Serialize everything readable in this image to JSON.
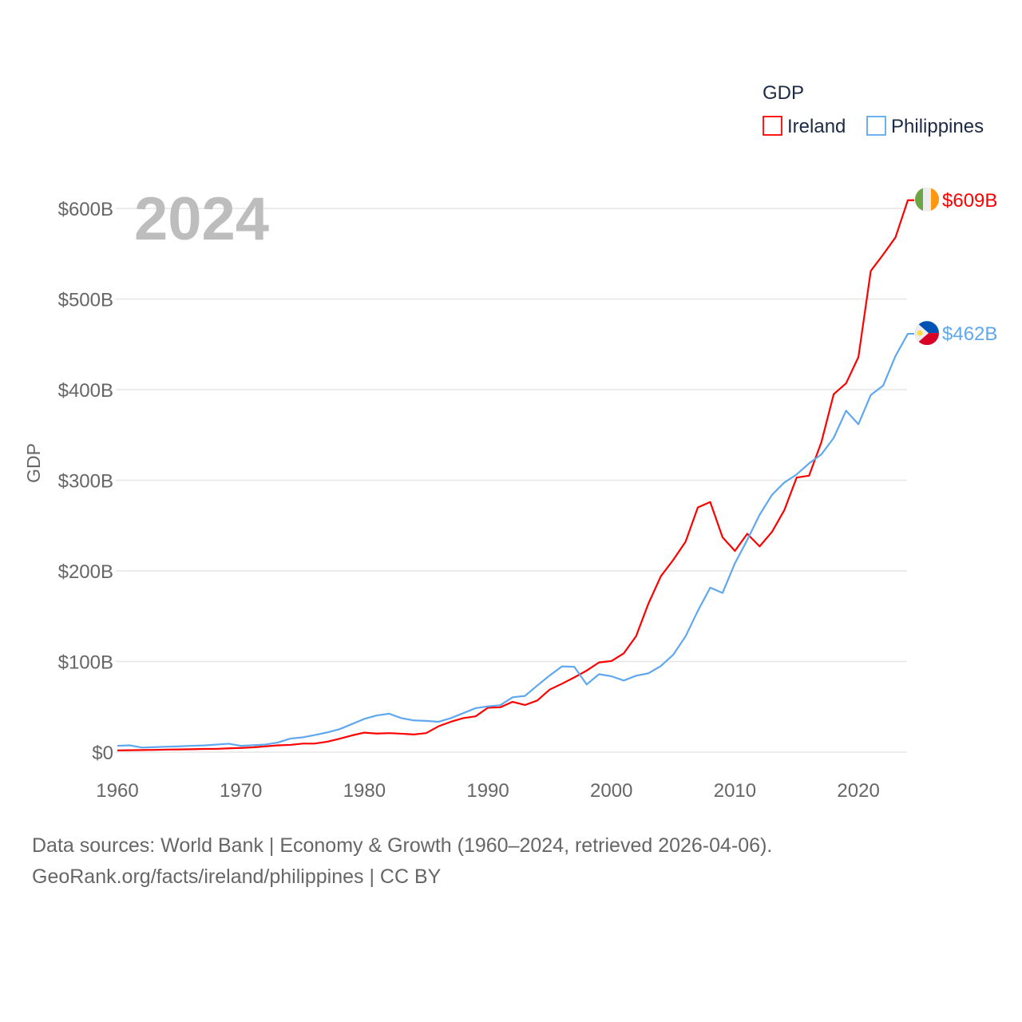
{
  "chart_data": {
    "type": "line",
    "title": "GDP",
    "year_label": "2024",
    "ylabel": "GDP",
    "xlabel": "",
    "xlim": [
      1960,
      2024
    ],
    "ylim": [
      0,
      600
    ],
    "y_unit": "billion USD",
    "xticks": [
      1960,
      1970,
      1980,
      1990,
      2000,
      2010,
      2020
    ],
    "xtick_labels": [
      "1960",
      "1970",
      "1980",
      "1990",
      "2000",
      "2010",
      "2020"
    ],
    "yticks": [
      0,
      100,
      200,
      300,
      400,
      500,
      600
    ],
    "ytick_labels": [
      "$0",
      "$100B",
      "$200B",
      "$300B",
      "$400B",
      "$500B",
      "$600B"
    ],
    "grid": true,
    "legend_title": "GDP",
    "legend_position": "top-right",
    "x": [
      1960,
      1961,
      1962,
      1963,
      1964,
      1965,
      1966,
      1967,
      1968,
      1969,
      1970,
      1971,
      1972,
      1973,
      1974,
      1975,
      1976,
      1977,
      1978,
      1979,
      1980,
      1981,
      1982,
      1983,
      1984,
      1985,
      1986,
      1987,
      1988,
      1989,
      1990,
      1991,
      1992,
      1993,
      1994,
      1995,
      1996,
      1997,
      1998,
      1999,
      2000,
      2001,
      2002,
      2003,
      2004,
      2005,
      2006,
      2007,
      2008,
      2009,
      2010,
      2011,
      2012,
      2013,
      2014,
      2015,
      2016,
      2017,
      2018,
      2019,
      2020,
      2021,
      2022,
      2023,
      2024
    ],
    "series": [
      {
        "name": "Ireland",
        "color": "#ff0000",
        "end_label": "$609B",
        "values": [
          1.9,
          2.1,
          2.3,
          2.5,
          2.8,
          3.0,
          3.2,
          3.5,
          3.6,
          4.2,
          4.6,
          5.3,
          6.4,
          7.5,
          8.0,
          9.4,
          9.5,
          11.5,
          14.8,
          18.5,
          21.5,
          20.5,
          21,
          20.3,
          19.5,
          21,
          28.5,
          33.5,
          37.5,
          39.5,
          49,
          49.5,
          55.5,
          52,
          57,
          69,
          75.5,
          82.5,
          90,
          99,
          100.5,
          109,
          128,
          164,
          194,
          212,
          232,
          270,
          276,
          237,
          222,
          241,
          227,
          243,
          267,
          303,
          305,
          342,
          395,
          407,
          436,
          531,
          549,
          568,
          609
        ]
      },
      {
        "name": "Philippines",
        "color": "#5fa8ef",
        "end_label": "$462B",
        "values": [
          7,
          7.5,
          5,
          5.5,
          6,
          6.4,
          7,
          7.4,
          8.3,
          9.3,
          7,
          7.6,
          8.4,
          10.6,
          14.9,
          16.3,
          18.9,
          21.8,
          25.4,
          31,
          36.7,
          40.5,
          42.4,
          37.5,
          35,
          34.5,
          33.5,
          37.5,
          43,
          48.5,
          50.5,
          51.8,
          60.5,
          62,
          73.5,
          84.6,
          94.6,
          94.1,
          74.7,
          86,
          83.7,
          79,
          84.3,
          87,
          95,
          107.4,
          127.7,
          155.9,
          181.5,
          175.7,
          208.4,
          234.2,
          261.9,
          283.9,
          297.5,
          306.4,
          318.6,
          328.5,
          346.8,
          376.8,
          361.8,
          394.1,
          404.4,
          437.1,
          461.6
        ]
      }
    ]
  },
  "footer": {
    "line1": "Data sources: World Bank | Economy & Growth (1960–2024, retrieved 2026-04-06).",
    "line2": "GeoRank.org/facts/ireland/philippines | CC BY"
  }
}
